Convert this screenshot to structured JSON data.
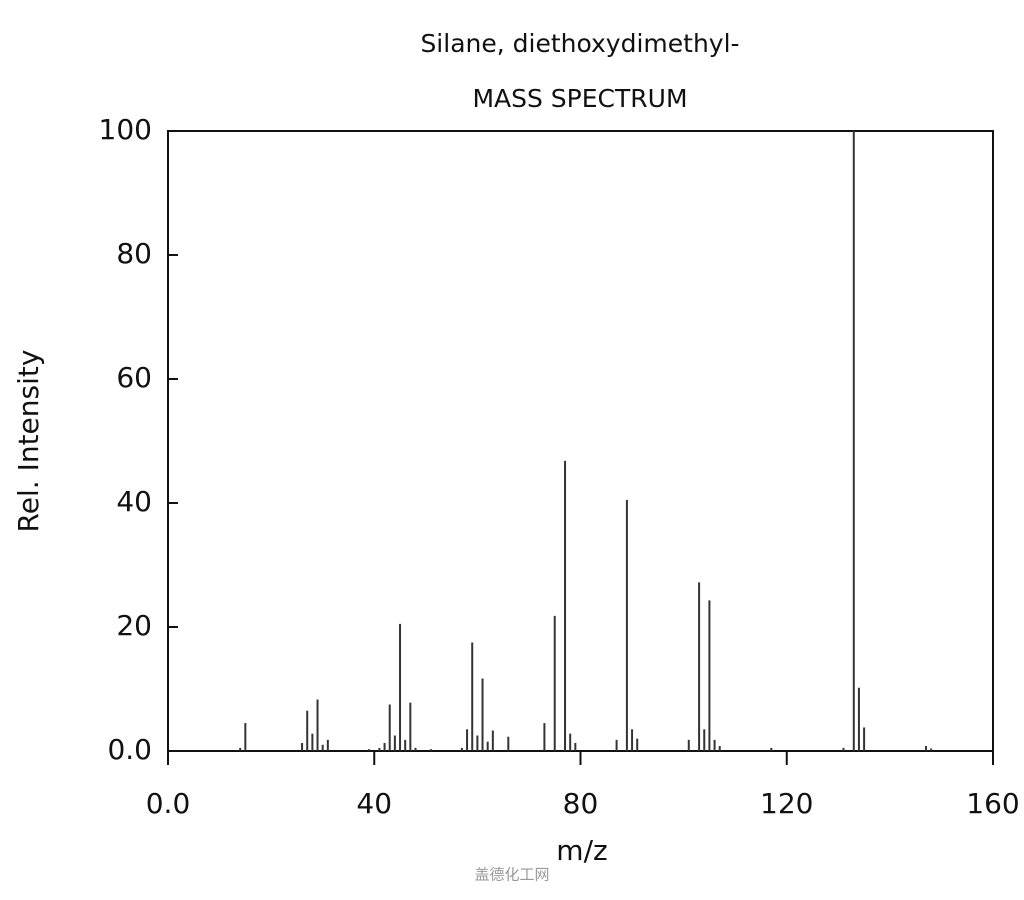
{
  "chart_data": {
    "type": "bar",
    "title": "Silane, diethoxydimethyl-",
    "subtitle": "MASS SPECTRUM",
    "x_label": "m/z",
    "y_label": "Rel. Intensity",
    "color": "#333333",
    "x": [
      14,
      15,
      26,
      27,
      28,
      29,
      30,
      31,
      39,
      41,
      42,
      43,
      44,
      45,
      46,
      47,
      48,
      51,
      57,
      58,
      59,
      60,
      61,
      62,
      63,
      66,
      73,
      75,
      77,
      78,
      79,
      87,
      89,
      90,
      91,
      101,
      103,
      104,
      105,
      106,
      107,
      117,
      131,
      133,
      134,
      135,
      147,
      148
    ],
    "values": [
      0.5,
      4.5,
      1.3,
      6.5,
      2.8,
      8.3,
      1,
      1.8,
      0.3,
      0.5,
      1.3,
      7.5,
      2.5,
      20.5,
      1.8,
      7.8,
      0.5,
      0.3,
      0.5,
      3.5,
      17.5,
      2.5,
      11.7,
      1.5,
      3.3,
      2.3,
      4.5,
      21.8,
      46.8,
      2.8,
      1.3,
      1.8,
      40.5,
      3.5,
      2,
      1.8,
      27.2,
      3.5,
      24.3,
      1.8,
      0.8,
      0.5,
      0.5,
      100,
      10.2,
      3.8,
      0.8,
      0.4
    ],
    "xlim": [
      0,
      160
    ],
    "xticks": [
      {
        "value": 0,
        "label": "0.0"
      },
      40,
      80,
      120,
      160
    ],
    "ylim": [
      0,
      100
    ],
    "yticks": [
      {
        "value": 0,
        "label": "0.0"
      },
      20,
      40,
      60,
      80,
      100
    ],
    "watermark": "盖德化工网"
  }
}
